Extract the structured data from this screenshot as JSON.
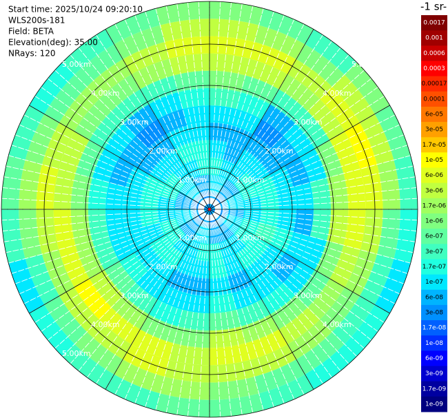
{
  "info": [
    "Start time: 2025/10/24 09:20:10",
    "WLS200s-181",
    "Field: BETA",
    "Elevation(deg): 35.00",
    "NRays: 120"
  ],
  "range_labels": [
    "1.00km",
    "2.00km",
    "3.00km",
    "4.00km",
    "5.00km"
  ],
  "colorbar": {
    "title": "-1 sr-",
    "labels": [
      "0.0017",
      "0.001",
      "0.0006",
      "0.0003",
      "0.00017",
      "0.0001",
      "6e-05",
      "3e-05",
      "1.7e-05",
      "1e-05",
      "6e-06",
      "3e-06",
      "1.7e-06",
      "1e-06",
      "6e-07",
      "3e-07",
      "1.7e-07",
      "1e-07",
      "6e-08",
      "3e-08",
      "1.7e-08",
      "1e-08",
      "6e-09",
      "3e-09",
      "1.7e-09",
      "1e-09"
    ],
    "colors": [
      "#800000",
      "#a00000",
      "#c80000",
      "#ff0000",
      "#ff2a00",
      "#ff5000",
      "#ff7800",
      "#ffa000",
      "#ffc800",
      "#ffff00",
      "#e0ff20",
      "#c0ff40",
      "#a0ff60",
      "#80ff80",
      "#60ffa0",
      "#40ffc0",
      "#20ffe0",
      "#00e8ff",
      "#00b4ff",
      "#0090ff",
      "#0060ff",
      "#0030ff",
      "#0000ff",
      "#0000d0",
      "#0000a0",
      "#000080"
    ]
  },
  "sectors": [
    [
      6e-08,
      1e-07,
      1.7e-07,
      1e-07,
      6e-08,
      1e-07,
      3e-07,
      1e-06,
      3e-06,
      6e-06,
      3e-06,
      1e-06
    ],
    [
      6e-08,
      1e-07,
      1e-07,
      6e-08,
      6e-08,
      1e-07,
      1.7e-07,
      6e-07,
      3e-06,
      6e-06,
      1.7e-06,
      6e-07
    ],
    [
      3e-08,
      6e-08,
      1e-07,
      1e-07,
      6e-08,
      3e-08,
      6e-08,
      3e-07,
      1.7e-06,
      3e-06,
      1e-06,
      3e-07
    ],
    [
      3e-08,
      6e-08,
      1.7e-07,
      1e-07,
      6e-08,
      6e-08,
      1e-07,
      3e-07,
      3e-06,
      6e-06,
      3e-06,
      1e-06
    ],
    [
      6e-08,
      1e-07,
      1.7e-07,
      1.7e-07,
      1e-07,
      6e-08,
      1e-07,
      1e-06,
      6e-06,
      1e-05,
      3e-06,
      6e-07
    ],
    [
      6e-08,
      1e-07,
      1e-07,
      1.7e-07,
      1e-07,
      1e-07,
      3e-07,
      1.7e-06,
      6e-06,
      6e-06,
      1.7e-06,
      3e-07
    ],
    [
      3e-08,
      6e-08,
      1e-07,
      1.7e-07,
      1e-07,
      6e-08,
      3e-07,
      3e-06,
      6e-06,
      3e-06,
      6e-07,
      1.7e-07
    ],
    [
      3e-08,
      1e-07,
      1.7e-07,
      3e-07,
      1.7e-07,
      1e-07,
      1e-07,
      1e-06,
      3e-06,
      1.7e-06,
      3e-07,
      1e-07
    ],
    [
      6e-08,
      1e-07,
      1.7e-07,
      1.7e-07,
      1e-07,
      6e-08,
      1e-07,
      6e-07,
      1.7e-06,
      1e-06,
      3e-07,
      1.7e-07
    ],
    [
      6e-08,
      6e-08,
      1e-07,
      1.7e-07,
      1e-07,
      1e-07,
      1.7e-07,
      1e-06,
      3e-06,
      1.7e-06,
      6e-07,
      1.7e-07
    ],
    [
      3e-08,
      6e-08,
      1e-07,
      1e-07,
      6e-08,
      1e-07,
      3e-07,
      1.7e-06,
      6e-06,
      3e-06,
      6e-07,
      3e-07
    ],
    [
      3e-08,
      6e-08,
      1.7e-07,
      1.7e-07,
      1e-07,
      1.7e-07,
      6e-07,
      3e-06,
      6e-06,
      3e-06,
      1e-06,
      6e-07
    ],
    [
      6e-08,
      1e-07,
      1.7e-07,
      1e-07,
      6e-08,
      1e-07,
      3e-07,
      1e-06,
      3e-06,
      3e-06,
      1.7e-06,
      6e-07
    ],
    [
      6e-08,
      1e-07,
      1e-07,
      1e-07,
      6e-08,
      1e-07,
      1.7e-07,
      1e-06,
      6e-06,
      6e-06,
      1.7e-06,
      3e-07
    ],
    [
      3e-08,
      6e-08,
      1e-07,
      1.7e-07,
      1e-07,
      1e-07,
      3e-07,
      1.7e-06,
      6e-06,
      3e-06,
      1e-06,
      3e-07
    ],
    [
      3e-08,
      6e-08,
      1.7e-07,
      1.7e-07,
      1e-07,
      1.7e-07,
      6e-07,
      3e-06,
      1e-05,
      3e-06,
      6e-07,
      1.7e-07
    ],
    [
      6e-08,
      1e-07,
      1.7e-07,
      1e-07,
      1e-07,
      1e-07,
      3e-07,
      1.7e-06,
      6e-06,
      1.7e-06,
      3e-07,
      1e-07
    ],
    [
      6e-08,
      1e-07,
      1e-07,
      1.7e-07,
      1e-07,
      1e-07,
      3e-07,
      1.7e-06,
      6e-06,
      3e-06,
      1e-06,
      3e-07
    ],
    [
      3e-08,
      6e-08,
      1e-07,
      1.7e-07,
      1e-07,
      1e-07,
      1.7e-07,
      1e-06,
      3e-06,
      6e-06,
      1.7e-06,
      6e-07
    ],
    [
      3e-08,
      6e-08,
      1.7e-07,
      1.7e-07,
      1e-07,
      6e-08,
      1e-07,
      6e-07,
      3e-06,
      3e-06,
      1e-06,
      3e-07
    ],
    [
      6e-08,
      1e-07,
      1.7e-07,
      1e-07,
      6e-08,
      6e-08,
      1e-07,
      3e-07,
      1e-06,
      1.7e-06,
      6e-07,
      1.7e-07
    ],
    [
      6e-08,
      1e-07,
      1e-07,
      1e-07,
      6e-08,
      3e-08,
      6e-08,
      3e-07,
      1e-06,
      1.7e-06,
      6e-07,
      3e-07
    ],
    [
      3e-08,
      6e-08,
      1e-07,
      1.7e-07,
      1e-07,
      6e-08,
      1e-07,
      3e-07,
      1.7e-06,
      3e-06,
      1e-06,
      6e-07
    ],
    [
      3e-08,
      6e-08,
      1.7e-07,
      1.7e-07,
      1e-07,
      1e-07,
      1.7e-07,
      6e-07,
      3e-06,
      6e-06,
      3e-06,
      1e-06
    ]
  ]
}
